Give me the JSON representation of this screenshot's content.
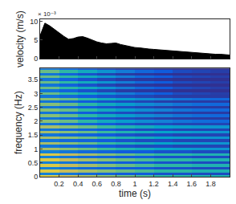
{
  "chart_data": [
    {
      "type": "area",
      "ylabel": "velocity (m/s)",
      "annotations": [
        "× 10⁻³"
      ],
      "color": "#000000",
      "tick_labels": "y",
      "x": [
        0,
        0.05,
        0.1,
        0.15,
        0.2,
        0.25,
        0.3,
        0.35,
        0.4,
        0.45,
        0.5,
        0.55,
        0.6,
        0.65,
        0.7,
        0.75,
        0.8,
        0.85,
        0.9,
        0.95,
        1.0,
        1.05,
        1.1,
        1.15,
        1.2,
        1.25,
        1.3,
        1.35,
        1.4,
        1.45,
        1.5,
        1.55,
        1.6,
        1.65,
        1.7,
        1.75,
        1.8,
        1.85,
        1.9,
        1.95,
        2.0
      ],
      "values": [
        0.0062,
        0.0095,
        0.0088,
        0.0078,
        0.007,
        0.006,
        0.0052,
        0.0054,
        0.0058,
        0.0059,
        0.0055,
        0.005,
        0.0045,
        0.0042,
        0.004,
        0.0041,
        0.0042,
        0.0038,
        0.0035,
        0.0032,
        0.003,
        0.0029,
        0.0027,
        0.0026,
        0.0025,
        0.0024,
        0.0022,
        0.0021,
        0.002,
        0.0019,
        0.0018,
        0.0017,
        0.0016,
        0.0015,
        0.0014,
        0.0014,
        0.0013,
        0.0012,
        0.0012,
        0.0011,
        0.001
      ],
      "xlim": [
        0,
        2
      ],
      "xticks": [
        0.2,
        0.4,
        0.6,
        0.8,
        1,
        1.2,
        1.4,
        1.6,
        1.8
      ],
      "ylim": [
        0,
        0.0105
      ],
      "yticks": [
        {
          "value": 0,
          "label": "0"
        },
        {
          "value": 0.005,
          "label": "5"
        },
        {
          "value": 0.01,
          "label": "10"
        }
      ]
    },
    {
      "type": "heatmap",
      "xlabel": "time (s)",
      "ylabel": "frequency (Hz)",
      "x": [
        0.1,
        0.3,
        0.5,
        0.7,
        0.9,
        1.1,
        1.3,
        1.5,
        1.7,
        1.9
      ],
      "y": [
        0,
        0.1,
        0.2,
        0.3,
        0.4,
        0.5,
        0.6,
        0.7,
        0.8,
        0.9,
        1.0,
        1.1,
        1.2,
        1.3,
        1.4,
        1.5,
        1.6,
        1.7,
        1.8,
        1.9,
        2.0,
        2.1,
        2.2,
        2.3,
        2.4,
        2.5,
        2.6,
        2.7,
        2.8,
        2.9,
        3.0,
        3.1,
        3.2,
        3.3,
        3.4,
        3.5,
        3.6,
        3.7,
        3.8,
        3.9
      ],
      "z": [
        [
          0.9,
          0.85,
          0.8,
          0.75,
          0.7,
          0.65,
          0.6,
          0.6,
          0.55,
          0.55
        ],
        [
          0.3,
          0.25,
          0.2,
          0.18,
          0.15,
          0.15,
          0.12,
          0.12,
          0.1,
          0.1
        ],
        [
          0.9,
          0.85,
          0.8,
          0.75,
          0.7,
          0.65,
          0.6,
          0.6,
          0.55,
          0.55
        ],
        [
          0.3,
          0.25,
          0.2,
          0.18,
          0.15,
          0.15,
          0.12,
          0.12,
          0.1,
          0.1
        ],
        [
          0.9,
          0.85,
          0.8,
          0.75,
          0.7,
          0.65,
          0.6,
          0.6,
          0.55,
          0.55
        ],
        [
          0.3,
          0.25,
          0.2,
          0.18,
          0.15,
          0.15,
          0.12,
          0.12,
          0.1,
          0.1
        ],
        [
          0.9,
          0.85,
          0.8,
          0.75,
          0.7,
          0.65,
          0.6,
          0.6,
          0.55,
          0.55
        ],
        [
          0.3,
          0.25,
          0.2,
          0.18,
          0.15,
          0.15,
          0.12,
          0.12,
          0.1,
          0.1
        ],
        [
          0.9,
          0.85,
          0.8,
          0.75,
          0.7,
          0.65,
          0.6,
          0.6,
          0.55,
          0.55
        ],
        [
          0.3,
          0.25,
          0.2,
          0.18,
          0.15,
          0.15,
          0.12,
          0.12,
          0.1,
          0.1
        ],
        [
          0.8,
          0.75,
          0.7,
          0.62,
          0.55,
          0.5,
          0.45,
          0.42,
          0.4,
          0.38
        ],
        [
          0.25,
          0.2,
          0.18,
          0.15,
          0.12,
          0.1,
          0.1,
          0.08,
          0.08,
          0.08
        ],
        [
          0.8,
          0.75,
          0.7,
          0.62,
          0.55,
          0.5,
          0.45,
          0.42,
          0.4,
          0.38
        ],
        [
          0.25,
          0.2,
          0.18,
          0.15,
          0.12,
          0.1,
          0.1,
          0.08,
          0.08,
          0.08
        ],
        [
          0.8,
          0.75,
          0.7,
          0.62,
          0.55,
          0.5,
          0.45,
          0.42,
          0.4,
          0.38
        ],
        [
          0.25,
          0.2,
          0.18,
          0.15,
          0.12,
          0.1,
          0.1,
          0.08,
          0.08,
          0.08
        ],
        [
          0.8,
          0.75,
          0.7,
          0.62,
          0.55,
          0.5,
          0.45,
          0.42,
          0.4,
          0.38
        ],
        [
          0.25,
          0.2,
          0.18,
          0.15,
          0.12,
          0.1,
          0.1,
          0.08,
          0.08,
          0.08
        ],
        [
          0.8,
          0.75,
          0.7,
          0.62,
          0.55,
          0.5,
          0.45,
          0.42,
          0.4,
          0.38
        ],
        [
          0.25,
          0.2,
          0.18,
          0.15,
          0.12,
          0.1,
          0.1,
          0.08,
          0.08,
          0.08
        ],
        [
          0.75,
          0.7,
          0.6,
          0.5,
          0.42,
          0.35,
          0.3,
          0.25,
          0.22,
          0.2
        ],
        [
          0.25,
          0.2,
          0.15,
          0.12,
          0.1,
          0.08,
          0.06,
          0.05,
          0.05,
          0.05
        ],
        [
          0.75,
          0.7,
          0.6,
          0.5,
          0.42,
          0.35,
          0.3,
          0.25,
          0.22,
          0.2
        ],
        [
          0.25,
          0.2,
          0.15,
          0.12,
          0.1,
          0.08,
          0.06,
          0.05,
          0.05,
          0.05
        ],
        [
          0.75,
          0.7,
          0.6,
          0.5,
          0.42,
          0.35,
          0.3,
          0.25,
          0.22,
          0.2
        ],
        [
          0.25,
          0.2,
          0.15,
          0.12,
          0.1,
          0.08,
          0.06,
          0.05,
          0.05,
          0.05
        ],
        [
          0.75,
          0.7,
          0.6,
          0.5,
          0.42,
          0.35,
          0.3,
          0.25,
          0.22,
          0.2
        ],
        [
          0.25,
          0.2,
          0.15,
          0.12,
          0.1,
          0.08,
          0.06,
          0.05,
          0.05,
          0.05
        ],
        [
          0.75,
          0.7,
          0.6,
          0.5,
          0.42,
          0.35,
          0.3,
          0.25,
          0.22,
          0.2
        ],
        [
          0.25,
          0.2,
          0.15,
          0.12,
          0.1,
          0.08,
          0.06,
          0.05,
          0.05,
          0.05
        ],
        [
          0.7,
          0.6,
          0.5,
          0.38,
          0.28,
          0.2,
          0.15,
          0.1,
          0.08,
          0.06
        ],
        [
          0.25,
          0.18,
          0.12,
          0.08,
          0.05,
          0.04,
          0.03,
          0.02,
          0.02,
          0.02
        ],
        [
          0.7,
          0.6,
          0.5,
          0.38,
          0.28,
          0.2,
          0.15,
          0.1,
          0.08,
          0.06
        ],
        [
          0.25,
          0.18,
          0.12,
          0.08,
          0.05,
          0.04,
          0.03,
          0.02,
          0.02,
          0.02
        ],
        [
          0.7,
          0.6,
          0.5,
          0.38,
          0.28,
          0.2,
          0.15,
          0.1,
          0.08,
          0.06
        ],
        [
          0.25,
          0.18,
          0.12,
          0.08,
          0.05,
          0.04,
          0.03,
          0.02,
          0.02,
          0.02
        ],
        [
          0.7,
          0.6,
          0.5,
          0.38,
          0.28,
          0.2,
          0.15,
          0.1,
          0.08,
          0.06
        ],
        [
          0.25,
          0.18,
          0.12,
          0.08,
          0.05,
          0.04,
          0.03,
          0.02,
          0.02,
          0.02
        ],
        [
          0.7,
          0.6,
          0.5,
          0.38,
          0.28,
          0.2,
          0.15,
          0.1,
          0.08,
          0.06
        ],
        [
          0.25,
          0.18,
          0.12,
          0.08,
          0.05,
          0.04,
          0.03,
          0.02,
          0.02,
          0.02
        ]
      ],
      "zlim": [
        0,
        1
      ],
      "xlim": [
        0,
        2
      ],
      "xticks": [
        0.2,
        0.4,
        0.6,
        0.8,
        1,
        1.2,
        1.4,
        1.6,
        1.8
      ],
      "ylim": [
        0,
        3.9
      ],
      "yticks": [
        0,
        0.5,
        1,
        1.5,
        2,
        2.5,
        3,
        3.5
      ]
    }
  ]
}
